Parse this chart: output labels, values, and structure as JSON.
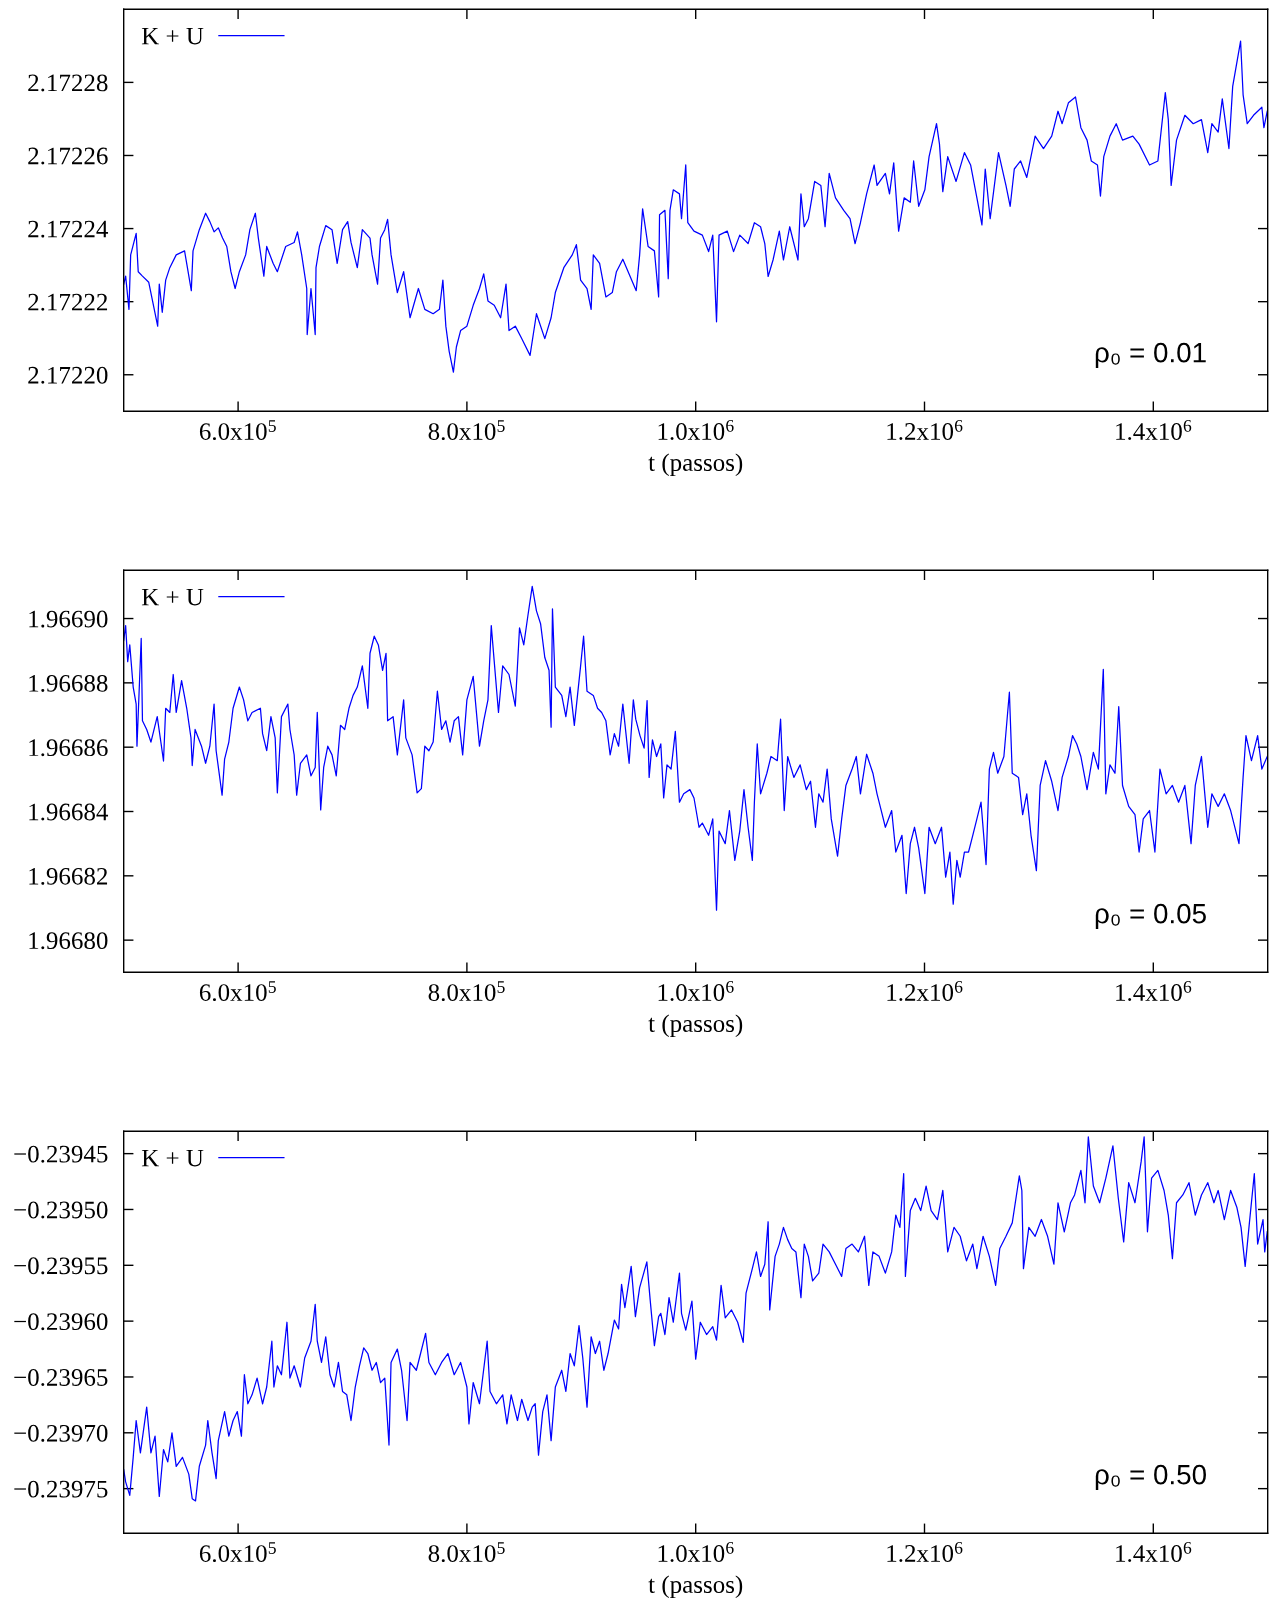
{
  "chart_data": [
    {
      "type": "line",
      "xlabel": "t (passos)",
      "legend": "top left",
      "annotations": [
        "ρ₀ = 0.01"
      ],
      "xlim": [
        500000,
        1500000
      ],
      "xticks": [
        {
          "value": 600000,
          "label": "6.0x10$^{5}$"
        },
        {
          "value": 800000,
          "label": "8.0x10$^{5}$"
        },
        {
          "value": 1000000,
          "label": "1.0x10$^{6}$"
        },
        {
          "value": 1200000,
          "label": "1.2x10$^{6}$"
        },
        {
          "value": 1400000,
          "label": "1.4x10$^{6}$"
        }
      ],
      "ylim": [
        2.17219,
        2.1723
      ],
      "yticks": [
        {
          "value": 2.1722,
          "label": "2.17220"
        },
        2.17222,
        2.17224,
        2.17226,
        2.17228
      ],
      "series": [
        {
          "name": "K + U",
          "color": "#0000ff",
          "x": [
            500000,
            501700,
            504600,
            506100,
            510900,
            512700,
            516400,
            521900,
            529700,
            531100,
            533700,
            536700,
            540300,
            545900,
            553200,
            559100,
            560600,
            566100,
            571600,
            575300,
            579000,
            582700,
            586400,
            590100,
            593700,
            597400,
            601100,
            606600,
            610300,
            615100,
            617700,
            622500,
            625000,
            630600,
            634300,
            641600,
            649000,
            651900,
            655600,
            660000,
            660400,
            663700,
            667400,
            668100,
            671100,
            676600,
            682100,
            686600,
            691300,
            695800,
            698700,
            704200,
            708600,
            715300,
            717100,
            721900,
            724500,
            728200,
            730700,
            733700,
            739200,
            744700,
            750300,
            757600,
            763200,
            770500,
            776000,
            779000,
            781600,
            784500,
            788200,
            790800,
            794500,
            800000,
            805500,
            811000,
            814700,
            818400,
            823900,
            829500,
            834200,
            836800,
            842300,
            847900,
            855200,
            860800,
            868100,
            873600,
            877300,
            884700,
            892100,
            895700,
            899400,
            905000,
            908600,
            910500,
            916000,
            921500,
            927100,
            930700,
            936300,
            948000,
            951000,
            953600,
            958400,
            963900,
            967600,
            968400,
            973100,
            976000,
            977500,
            980400,
            985800,
            987600,
            991300,
            993100,
            998500,
            1005800,
            1011300,
            1014900,
            1018200,
            1020400,
            1027600,
            1033100,
            1038500,
            1045800,
            1051300,
            1056700,
            1060400,
            1063300,
            1067600,
            1073100,
            1076700,
            1082200,
            1089400,
            1092000,
            1094900,
            1098500,
            1104000,
            1109400,
            1113100,
            1116700,
            1122200,
            1129400,
            1134900,
            1139300,
            1144000,
            1149400,
            1156000,
            1158500,
            1165800,
            1169400,
            1173100,
            1177400,
            1182200,
            1187600,
            1190500,
            1194900,
            1200300,
            1204000,
            1210500,
            1213100,
            1216000,
            1220300,
            1227600,
            1234900,
            1240300,
            1245800,
            1250200,
            1253100,
            1257400,
            1264700,
            1271200,
            1274900,
            1278500,
            1284000,
            1289400,
            1296700,
            1304000,
            1311200,
            1316700,
            1320300,
            1325800,
            1332000,
            1336700,
            1342100,
            1345800,
            1351200,
            1353800,
            1356700,
            1362100,
            1367600,
            1373100,
            1382100,
            1387600,
            1396700,
            1404000,
            1410500,
            1413100,
            1415600,
            1420300,
            1427600,
            1434900,
            1442100,
            1447600,
            1451200,
            1456700,
            1460300,
            1466100,
            1469400,
            1476300,
            1478500,
            1482100,
            1487600,
            1494900,
            1496700,
            1499600
          ],
          "values": [
            2.1722248,
            2.172227,
            2.1722179,
            2.1722328,
            2.1722387,
            2.1722282,
            2.172227,
            2.1722253,
            2.1722133,
            2.1722248,
            2.1722171,
            2.1722259,
            2.1722293,
            2.1722328,
            2.1722339,
            2.172223,
            2.1722339,
            2.1722397,
            2.1722442,
            2.1722419,
            2.1722391,
            2.1722402,
            2.1722374,
            2.1722351,
            2.1722282,
            2.1722236,
            2.1722282,
            2.1722328,
            2.1722397,
            2.1722442,
            2.1722374,
            2.172227,
            2.1722351,
            2.1722305,
            2.1722282,
            2.1722351,
            2.1722362,
            2.1722391,
            2.1722328,
            2.1722236,
            2.172211,
            2.1722236,
            2.172211,
            2.1722293,
            2.1722351,
            2.1722408,
            2.1722397,
            2.1722305,
            2.1722397,
            2.1722419,
            2.1722362,
            2.1722293,
            2.1722397,
            2.1722374,
            2.1722328,
            2.1722248,
            2.1722374,
            2.1722397,
            2.1722425,
            2.1722328,
            2.1722225,
            2.1722282,
            2.1722156,
            2.1722236,
            2.1722179,
            2.1722167,
            2.1722179,
            2.1722259,
            2.1722133,
            2.1722064,
            2.1722007,
            2.1722076,
            2.1722121,
            2.1722133,
            2.172219,
            2.1722236,
            2.1722276,
            2.1722202,
            2.172219,
            2.1722156,
            2.1722248,
            2.1722121,
            2.1722133,
            2.1722099,
            2.1722053,
            2.1722167,
            2.1722099,
            2.1722156,
            2.1722225,
            2.1722293,
            2.1722328,
            2.1722356,
            2.1722259,
            2.1722236,
            2.1722179,
            2.1722328,
            2.1722305,
            2.1722213,
            2.1722225,
            2.1722282,
            2.1722316,
            2.172223,
            2.1722328,
            2.1722454,
            2.1722351,
            2.1722339,
            2.1722213,
            2.1722438,
            2.172245,
            2.1722263,
            2.172245,
            2.1722506,
            2.1722495,
            2.1722427,
            2.1722574,
            2.1722416,
            2.1722393,
            2.1722382,
            2.1722337,
            2.1722382,
            2.1722145,
            2.1722382,
            2.1722393,
            2.1722337,
            2.1722382,
            2.1722359,
            2.1722416,
            2.1722405,
            2.1722359,
            2.1722269,
            2.1722314,
            2.1722393,
            2.1722314,
            2.1722405,
            2.1722314,
            2.1722495,
            2.1722405,
            2.1722427,
            2.1722529,
            2.1722518,
            2.1722405,
            2.1722551,
            2.1722484,
            2.172245,
            2.1722427,
            2.1722359,
            2.1722416,
            2.1722495,
            2.1722574,
            2.1722518,
            2.1722551,
            2.1722495,
            2.172258,
            2.1722393,
            2.1722484,
            2.1722472,
            2.1722585,
            2.1722461,
            2.1722506,
            2.1722597,
            2.1722687,
            2.1722631,
            2.1722501,
            2.1722597,
            2.1722529,
            2.1722608,
            2.1722574,
            2.1722484,
            2.172241,
            2.1722563,
            2.1722427,
            2.1722608,
            2.1722518,
            2.1722461,
            2.1722563,
            2.1722585,
            2.172254,
            2.1722653,
            2.1722619,
            2.1722653,
            2.1722721,
            2.1722687,
            2.1722744,
            2.172276,
            2.1722676,
            2.1722642,
            2.1722585,
            2.1722574,
            2.1722489,
            2.1722597,
            2.1722653,
            2.1722687,
            2.1722642,
            2.1722653,
            2.1722631,
            2.1722574,
            2.1722585,
            2.1722772,
            2.1722698,
            2.1722518,
            2.1722642,
            2.172271,
            2.1722687,
            2.1722698,
            2.1722608,
            2.1722687,
            2.1722664,
            2.1722755,
            2.1722619,
            2.1722789,
            2.1722913,
            2.1722766,
            2.1722687,
            2.172271,
            2.1722732,
            2.1722676,
            2.1722721
          ]
        }
      ]
    },
    {
      "type": "line",
      "xlabel": "t (passos)",
      "legend": "top left",
      "annotations": [
        "ρ₀ = 0.05"
      ],
      "xlim": [
        500000,
        1500000
      ],
      "xticks": [
        {
          "value": 600000,
          "label": "6.0x10$^{5}$"
        },
        {
          "value": 800000,
          "label": "8.0x10$^{5}$"
        },
        {
          "value": 1000000,
          "label": "1.0x10$^{6}$"
        },
        {
          "value": 1200000,
          "label": "1.2x10$^{6}$"
        },
        {
          "value": 1400000,
          "label": "1.4x10$^{6}$"
        }
      ],
      "ylim": [
        1.96679,
        1.966915
      ],
      "yticks": [
        {
          "value": 1.9668,
          "label": "1.96680"
        },
        1.96682,
        1.96684,
        1.96686,
        1.96688,
        {
          "value": 1.9669,
          "label": "1.96690"
        }
      ],
      "series": [
        {
          "name": "K + U",
          "color": "#0000ff",
          "x": [
            500000,
            501700,
            503500,
            505300,
            508300,
            510900,
            511600,
            515300,
            516400,
            520100,
            523800,
            529300,
            533000,
            534800,
            536700,
            540300,
            543300,
            545900,
            550600,
            555100,
            558800,
            559900,
            562400,
            568000,
            571600,
            575300,
            579000,
            580800,
            586000,
            588200,
            591900,
            595600,
            601100,
            604800,
            608500,
            612200,
            619500,
            621400,
            625000,
            628700,
            632400,
            634300,
            637900,
            643500,
            645300,
            649000,
            651200,
            654500,
            660000,
            663700,
            667400,
            669200,
            672200,
            674800,
            678400,
            682100,
            685800,
            689500,
            693200,
            696900,
            700500,
            704200,
            708600,
            713400,
            715300,
            719000,
            722600,
            726300,
            729300,
            730700,
            735500,
            739200,
            744700,
            746600,
            752100,
            756500,
            760200,
            763200,
            766800,
            770500,
            774200,
            777900,
            781600,
            785300,
            788900,
            792600,
            796300,
            800000,
            805500,
            811000,
            814700,
            818400,
            821300,
            823900,
            827600,
            831300,
            836800,
            842300,
            846000,
            849700,
            853400,
            857100,
            860800,
            864400,
            868100,
            871800,
            873600,
            874800,
            877300,
            882900,
            886500,
            890200,
            893900,
            899400,
            902000,
            905000,
            910500,
            914200,
            917800,
            921500,
            925200,
            928900,
            932600,
            936300,
            941800,
            945500,
            947600,
            951300,
            954900,
            957500,
            959300,
            962200,
            965800,
            969500,
            972000,
            974900,
            978500,
            982200,
            985800,
            989500,
            994900,
            998500,
            1002900,
            1005800,
            1011300,
            1014900,
            1018200,
            1020400,
            1025800,
            1029500,
            1034200,
            1038500,
            1042200,
            1045800,
            1049500,
            1051300,
            1053800,
            1056700,
            1062200,
            1065800,
            1071300,
            1074200,
            1077400,
            1080400,
            1085800,
            1091300,
            1096700,
            1100400,
            1104700,
            1107600,
            1111300,
            1114900,
            1118500,
            1124000,
            1127600,
            1131300,
            1136700,
            1140400,
            1144000,
            1149400,
            1154900,
            1158500,
            1162200,
            1165800,
            1171300,
            1174900,
            1180300,
            1184000,
            1187600,
            1191300,
            1194900,
            1200300,
            1204000,
            1209400,
            1214900,
            1218500,
            1222200,
            1225100,
            1228300,
            1231200,
            1234900,
            1238500,
            1242200,
            1245800,
            1249400,
            1253800,
            1256700,
            1260300,
            1264000,
            1269400,
            1274200,
            1276700,
            1282200,
            1285800,
            1289400,
            1293100,
            1297800,
            1301100,
            1305800,
            1311200,
            1316700,
            1320300,
            1325800,
            1329400,
            1333100,
            1336700,
            1342100,
            1347600,
            1352000,
            1356300,
            1358500,
            1362100,
            1366500,
            1369800,
            1373100,
            1378500,
            1384000,
            1387600,
            1391200,
            1396700,
            1401400,
            1405800,
            1411200,
            1416700,
            1422100,
            1427600,
            1433000,
            1436700,
            1442100,
            1447600,
            1451200,
            1456700,
            1462100,
            1467600,
            1474900,
            1478500,
            1481000,
            1485800,
            1491200,
            1494900,
            1499600
          ],
          "values": [
            1.9668932,
            1.9668978,
            1.9668866,
            1.9668918,
            1.9668787,
            1.9668734,
            1.9668603,
            1.9668938,
            1.9668682,
            1.9668655,
            1.9668616,
            1.9668695,
            1.9668603,
            1.9668557,
            1.9668721,
            1.9668708,
            1.9668826,
            1.9668708,
            1.9668807,
            1.9668721,
            1.9668629,
            1.9668543,
            1.9668655,
            1.9668603,
            1.966855,
            1.9668603,
            1.9668734,
            1.9668589,
            1.9668451,
            1.9668563,
            1.9668616,
            1.9668721,
            1.9668787,
            1.9668747,
            1.9668682,
            1.9668708,
            1.9668721,
            1.9668642,
            1.9668589,
            1.9668695,
            1.9668629,
            1.9668458,
            1.9668695,
            1.9668734,
            1.9668655,
            1.9668576,
            1.9668451,
            1.966855,
            1.9668576,
            1.9668511,
            1.9668537,
            1.9668708,
            1.9668405,
            1.9668537,
            1.9668603,
            1.9668576,
            1.9668511,
            1.9668668,
            1.9668655,
            1.9668721,
            1.9668761,
            1.9668787,
            1.9668853,
            1.9668721,
            1.9668892,
            1.9668945,
            1.9668918,
            1.9668839,
            1.9668892,
            1.9668682,
            1.9668695,
            1.9668576,
            1.9668747,
            1.9668629,
            1.9668576,
            1.9668458,
            1.9668471,
            1.9668603,
            1.9668589,
            1.9668616,
            1.9668774,
            1.9668655,
            1.9668682,
            1.9668616,
            1.9668682,
            1.9668695,
            1.9668576,
            1.9668747,
            1.966882,
            1.9668603,
            1.9668682,
            1.9668747,
            1.9668978,
            1.9668866,
            1.9668708,
            1.9668853,
            1.9668826,
            1.9668728,
            1.9668971,
            1.9668918,
            1.9669011,
            1.96691,
            1.9669024,
            1.9668984,
            1.9668879,
            1.9668839,
            1.9668662,
            1.966903,
            1.9668787,
            1.9668761,
            1.9668695,
            1.9668787,
            1.9668668,
            1.9668853,
            1.9668945,
            1.9668774,
            1.9668761,
            1.9668721,
            1.9668708,
            1.9668682,
            1.9668576,
            1.9668642,
            1.9668603,
            1.9668734,
            1.966855,
            1.9668747,
            1.9668687,
            1.9668636,
            1.9668597,
            1.9668745,
            1.9668506,
            1.9668623,
            1.9668571,
            1.966861,
            1.9668442,
            1.9668545,
            1.9668532,
            1.9668649,
            1.9668429,
            1.9668455,
            1.9668468,
            1.9668442,
            1.9668351,
            1.9668364,
            1.9668326,
            1.9668377,
            1.9668093,
            1.9668339,
            1.96683,
            1.9668403,
            1.9668248,
            1.9668339,
            1.9668468,
            1.9668351,
            1.9668248,
            1.9668429,
            1.966861,
            1.9668455,
            1.9668519,
            1.9668571,
            1.9668558,
            1.9668687,
            1.9668403,
            1.9668571,
            1.9668506,
            1.9668545,
            1.9668468,
            1.9668494,
            1.9668351,
            1.9668455,
            1.9668429,
            1.9668532,
            1.9668377,
            1.9668261,
            1.9668377,
            1.9668481,
            1.9668532,
            1.9668571,
            1.9668455,
            1.9668578,
            1.9668519,
            1.9668455,
            1.9668403,
            1.9668351,
            1.9668403,
            1.9668274,
            1.9668326,
            1.9668145,
            1.96683,
            1.9668351,
            1.9668287,
            1.9668145,
            1.9668351,
            1.96683,
            1.9668351,
            1.9668196,
            1.9668274,
            1.9668112,
            1.9668248,
            1.9668196,
            1.9668274,
            1.9668274,
            1.9668326,
            1.9668377,
            1.9668429,
            1.9668235,
            1.9668532,
            1.9668584,
            1.9668519,
            1.9668571,
            1.9668771,
            1.9668519,
            1.9668506,
            1.966839,
            1.9668455,
            1.9668326,
            1.9668216,
            1.9668481,
            1.9668558,
            1.9668494,
            1.9668403,
            1.9668506,
            1.9668571,
            1.9668636,
            1.966861,
            1.9668571,
            1.9668468,
            1.9668584,
            1.9668532,
            1.9668842,
            1.9668455,
            1.9668545,
            1.9668519,
            1.9668726,
            1.9668481,
            1.9668416,
            1.966839,
            1.9668274,
            1.9668377,
            1.9668403,
            1.9668274,
            1.9668532,
            1.9668455,
            1.9668481,
            1.9668429,
            1.9668481,
            1.96683,
            1.9668481,
            1.9668571,
            1.9668351,
            1.9668455,
            1.9668416,
            1.9668455,
            1.9668403,
            1.96683,
            1.9668506,
            1.9668636,
            1.9668558,
            1.9668636,
            1.9668532,
            1.9668571
          ]
        }
      ]
    },
    {
      "type": "line",
      "xlabel": "t (passos)",
      "legend": "top left",
      "annotations": [
        "ρ₀ = 0.50"
      ],
      "xlim": [
        500000,
        1500000
      ],
      "xticks": [
        {
          "value": 600000,
          "label": "6.0x10$^{5}$"
        },
        {
          "value": 800000,
          "label": "8.0x10$^{5}$"
        },
        {
          "value": 1000000,
          "label": "1.0x10$^{6}$"
        },
        {
          "value": 1200000,
          "label": "1.2x10$^{6}$"
        },
        {
          "value": 1400000,
          "label": "1.4x10$^{6}$"
        }
      ],
      "ylim": [
        -0.23979,
        -0.23943
      ],
      "yticks": [
        {
          "value": -0.23975,
          "label": "−0.23975"
        },
        {
          "value": -0.2397,
          "label": "−0.23970"
        },
        {
          "value": -0.23965,
          "label": "−0.23965"
        },
        {
          "value": -0.2396,
          "label": "−0.23960"
        },
        {
          "value": -0.23955,
          "label": "−0.23955"
        },
        {
          "value": -0.2395,
          "label": "−0.23950"
        },
        {
          "value": -0.23945,
          "label": "−0.23945"
        }
      ],
      "series": [
        {
          "name": "K + U",
          "color": "#0000ff",
          "x": [
            500000,
            501700,
            505300,
            508300,
            510900,
            514600,
            520100,
            523800,
            527400,
            531100,
            534800,
            538500,
            542200,
            545900,
            551400,
            556900,
            559900,
            562800,
            566100,
            571600,
            573500,
            577200,
            580800,
            582700,
            588200,
            591900,
            595600,
            599300,
            602900,
            605500,
            608500,
            612200,
            616600,
            621400,
            625000,
            629500,
            631300,
            634300,
            637900,
            642700,
            645300,
            649000,
            654500,
            658200,
            663700,
            667400,
            669200,
            672900,
            676600,
            680300,
            684000,
            687700,
            691300,
            695000,
            698700,
            702400,
            706100,
            709800,
            713400,
            717100,
            720800,
            724500,
            728200,
            731900,
            733700,
            739200,
            742900,
            747700,
            750300,
            755800,
            759500,
            763900,
            766800,
            772400,
            777900,
            783400,
            788900,
            794500,
            800000,
            801800,
            805500,
            811000,
            817700,
            820200,
            825800,
            831300,
            835000,
            838700,
            844200,
            847900,
            853400,
            857100,
            859700,
            862600,
            866300,
            870000,
            873600,
            877300,
            882900,
            886500,
            890200,
            893900,
            898000,
            901300,
            905000,
            908600,
            912300,
            916000,
            919700,
            923400,
            928900,
            932600,
            935200,
            938100,
            943600,
            947300,
            951000,
            957300,
            960200,
            963900,
            967600,
            969500,
            973100,
            976700,
            980400,
            985800,
            987600,
            991300,
            996700,
            1000000,
            1004000,
            1009500,
            1014900,
            1018200,
            1022200,
            1025800,
            1031300,
            1036700,
            1041500,
            1044000,
            1049500,
            1053100,
            1056700,
            1060400,
            1063300,
            1064700,
            1069400,
            1073100,
            1076700,
            1080400,
            1084000,
            1087600,
            1092000,
            1094900,
            1098500,
            1102200,
            1107600,
            1111300,
            1116700,
            1122200,
            1127600,
            1131300,
            1136700,
            1142200,
            1147600,
            1151300,
            1154900,
            1160300,
            1165800,
            1171300,
            1174900,
            1178500,
            1181800,
            1183300,
            1187600,
            1192000,
            1196700,
            1201400,
            1205800,
            1211300,
            1216000,
            1220300,
            1225800,
            1231200,
            1236700,
            1242200,
            1245800,
            1251200,
            1256700,
            1262200,
            1265800,
            1271200,
            1276700,
            1282900,
            1285100,
            1286500,
            1291200,
            1296700,
            1302200,
            1307600,
            1313100,
            1316700,
            1322200,
            1327600,
            1331200,
            1336700,
            1340300,
            1343200,
            1347600,
            1353100,
            1358500,
            1364700,
            1369400,
            1374100,
            1378500,
            1384000,
            1389400,
            1392000,
            1394900,
            1398500,
            1404000,
            1409400,
            1413100,
            1416700,
            1420300,
            1425800,
            1431200,
            1436700,
            1442100,
            1447600,
            1453000,
            1456700,
            1462100,
            1467600,
            1473000,
            1476700,
            1480300,
            1484000,
            1488300,
            1491200,
            1495900,
            1497400,
            1499600
          ],
          "values": [
            -0.239733,
            -0.239744,
            -0.239756,
            -0.239722,
            -0.239689,
            -0.239718,
            -0.239677,
            -0.239718,
            -0.239703,
            -0.239757,
            -0.239715,
            -0.239726,
            -0.2397,
            -0.23973,
            -0.239722,
            -0.239737,
            -0.239759,
            -0.239761,
            -0.23973,
            -0.239711,
            -0.239689,
            -0.239718,
            -0.239741,
            -0.239707,
            -0.239681,
            -0.239703,
            -0.239689,
            -0.239681,
            -0.239703,
            -0.239648,
            -0.239674,
            -0.239666,
            -0.239651,
            -0.239674,
            -0.239659,
            -0.239618,
            -0.239659,
            -0.23964,
            -0.239648,
            -0.239601,
            -0.239651,
            -0.23964,
            -0.239659,
            -0.239633,
            -0.239618,
            -0.239585,
            -0.239618,
            -0.239637,
            -0.239614,
            -0.239648,
            -0.239659,
            -0.239637,
            -0.239663,
            -0.239666,
            -0.239689,
            -0.239659,
            -0.23964,
            -0.239624,
            -0.239629,
            -0.239644,
            -0.239637,
            -0.239655,
            -0.239651,
            -0.239711,
            -0.239637,
            -0.239625,
            -0.239644,
            -0.239689,
            -0.239637,
            -0.239644,
            -0.239629,
            -0.239611,
            -0.239637,
            -0.239648,
            -0.239637,
            -0.239629,
            -0.239648,
            -0.239637,
            -0.239659,
            -0.239692,
            -0.239655,
            -0.239674,
            -0.239618,
            -0.239663,
            -0.239674,
            -0.239666,
            -0.239692,
            -0.239666,
            -0.239689,
            -0.23967,
            -0.239689,
            -0.239677,
            -0.239674,
            -0.23972,
            -0.239681,
            -0.239666,
            -0.239707,
            -0.239659,
            -0.239644,
            -0.239663,
            -0.239629,
            -0.23964,
            -0.239604,
            -0.239633,
            -0.239677,
            -0.239614,
            -0.239629,
            -0.239618,
            -0.239644,
            -0.239629,
            -0.239599,
            -0.239607,
            -0.239567,
            -0.239588,
            -0.239551,
            -0.239596,
            -0.23957,
            -0.239547,
            -0.239581,
            -0.239622,
            -0.239596,
            -0.239593,
            -0.239612,
            -0.239579,
            -0.239601,
            -0.239557,
            -0.239593,
            -0.239608,
            -0.239582,
            -0.239634,
            -0.239601,
            -0.239612,
            -0.239605,
            -0.239617,
            -0.239568,
            -0.239597,
            -0.23959,
            -0.239601,
            -0.239619,
            -0.239575,
            -0.239553,
            -0.239538,
            -0.23956,
            -0.239549,
            -0.239511,
            -0.23959,
            -0.239542,
            -0.239531,
            -0.239516,
            -0.239527,
            -0.239535,
            -0.239538,
            -0.239579,
            -0.239531,
            -0.239542,
            -0.239564,
            -0.239557,
            -0.239531,
            -0.239538,
            -0.239549,
            -0.23956,
            -0.239535,
            -0.239531,
            -0.239538,
            -0.239524,
            -0.239568,
            -0.239538,
            -0.239542,
            -0.239557,
            -0.239538,
            -0.239505,
            -0.239516,
            -0.239468,
            -0.23956,
            -0.239501,
            -0.23949,
            -0.239501,
            -0.239479,
            -0.239501,
            -0.239509,
            -0.239483,
            -0.239538,
            -0.239516,
            -0.239524,
            -0.239546,
            -0.239531,
            -0.239553,
            -0.239524,
            -0.239542,
            -0.239568,
            -0.239535,
            -0.239524,
            -0.239512,
            -0.23947,
            -0.239483,
            -0.239553,
            -0.239516,
            -0.239524,
            -0.239509,
            -0.239524,
            -0.239549,
            -0.239494,
            -0.23952,
            -0.239494,
            -0.239487,
            -0.239465,
            -0.239494,
            -0.239435,
            -0.239479,
            -0.239494,
            -0.239472,
            -0.239443,
            -0.23949,
            -0.239529,
            -0.239476,
            -0.239494,
            -0.239457,
            -0.239435,
            -0.23952,
            -0.239472,
            -0.239465,
            -0.239483,
            -0.239505,
            -0.239544,
            -0.239494,
            -0.239487,
            -0.239476,
            -0.239505,
            -0.239487,
            -0.239476,
            -0.239494,
            -0.239483,
            -0.239509,
            -0.239483,
            -0.239498,
            -0.239516,
            -0.239551,
            -0.239512,
            -0.239468,
            -0.239531,
            -0.239509,
            -0.239538,
            -0.23952
          ]
        }
      ]
    }
  ]
}
